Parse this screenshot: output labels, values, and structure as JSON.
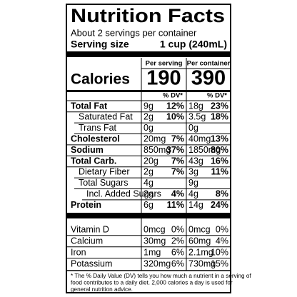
{
  "title": "Nutrition Facts",
  "servings": "About 2 servings per container",
  "serving_size": {
    "label": "Serving size",
    "value": "1 cup (240mL)"
  },
  "calories": {
    "label": "Calories",
    "columns": [
      {
        "header": "Per serving",
        "value": "190"
      },
      {
        "header": "Per container",
        "value": "390"
      }
    ]
  },
  "dv_header": [
    "% DV*",
    "% DV*"
  ],
  "nutrients": [
    {
      "name": "Total Fat",
      "bold": true,
      "indent": 0,
      "values": [
        "9g",
        "12%",
        "18g",
        "23%"
      ]
    },
    {
      "name": "Saturated Fat",
      "bold": false,
      "indent": 1,
      "values": [
        "2g",
        "10%",
        "3.5g",
        "18%"
      ]
    },
    {
      "name": "Trans Fat",
      "bold": false,
      "indent": 1,
      "values": [
        "0g",
        null,
        "0g",
        null
      ]
    },
    {
      "name": "Cholesterol",
      "bold": true,
      "indent": 0,
      "values": [
        "20mg",
        "7%",
        "40mg",
        "13%"
      ]
    },
    {
      "name": "Sodium",
      "bold": true,
      "indent": 0,
      "values": [
        "850mg",
        "37%",
        "1850mg",
        "80%"
      ]
    },
    {
      "name": "Total Carb.",
      "bold": true,
      "indent": 0,
      "values": [
        "20g",
        "7%",
        "43g",
        "16%"
      ]
    },
    {
      "name": "Dietary Fiber",
      "bold": false,
      "indent": 1,
      "values": [
        "2g",
        "7%",
        "3g",
        "11%"
      ]
    },
    {
      "name": "Total Sugars",
      "bold": false,
      "indent": 1,
      "values": [
        "4g",
        null,
        "9g",
        null
      ]
    },
    {
      "name": "Incl. Added Sugars",
      "bold": false,
      "indent": 2,
      "values": [
        "2g",
        "4%",
        "4g",
        "8%"
      ]
    },
    {
      "name": "Protein",
      "bold": true,
      "indent": 0,
      "values": [
        "6g",
        "11%",
        "14g",
        "24%"
      ]
    }
  ],
  "vitamins": [
    {
      "name": "Vitamin D",
      "values": [
        "0mcg",
        "0%",
        "0mcg",
        "0%"
      ]
    },
    {
      "name": "Calcium",
      "values": [
        "30mg",
        "2%",
        "60mg",
        "4%"
      ]
    },
    {
      "name": "Iron",
      "values": [
        "1mg",
        "6%",
        "2.1mg",
        "10%"
      ]
    },
    {
      "name": "Potassium",
      "values": [
        "320mg",
        "6%",
        "730mg",
        "15%"
      ]
    }
  ],
  "footnote": [
    "* The % Daily Value (DV) tells you how much a nutrient in a serving of",
    "food contributes to a daily diet. 2,000 calories a day is used for",
    "general nutrition advice."
  ]
}
